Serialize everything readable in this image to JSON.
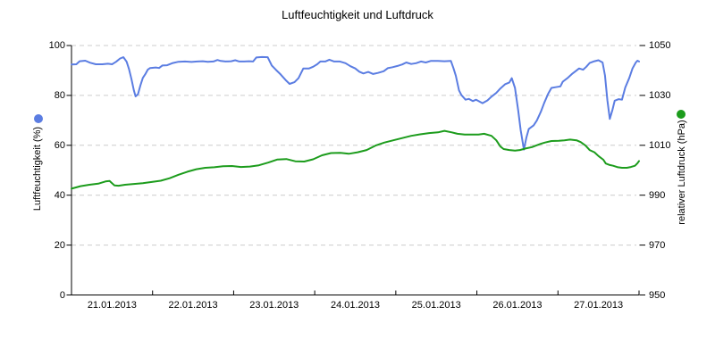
{
  "page": {
    "background": "#ffffff"
  },
  "chart_data": {
    "type": "line",
    "title": "Luftfeuchtigkeit und Luftdruck",
    "grid": "horizontal-dashed",
    "grid_color": "#cccccc",
    "axis_color": "#000000",
    "legend_position": "rotated-axis-titles-with-dots",
    "x_axis": {
      "tick_labels": [
        "21.01.2013",
        "22.01.2013",
        "23.01.2013",
        "24.01.2013",
        "25.01.2013",
        "26.01.2013",
        "27.01.2013"
      ],
      "range_days": [
        0,
        7
      ]
    },
    "y_axis_left": {
      "label": "Luftfeuchtigkeit (%)",
      "ticks": [
        0,
        20,
        40,
        60,
        80,
        100
      ],
      "range": [
        0,
        100
      ]
    },
    "y_axis_right": {
      "label": "relativer Luftdruck (hPa)",
      "ticks": [
        950,
        970,
        990,
        1010,
        1030,
        1050
      ],
      "range": [
        950,
        1050
      ]
    },
    "series": [
      {
        "name": "Luftfeuchtigkeit",
        "axis": "left",
        "unit": "%",
        "color": "#5b7de2",
        "data": [
          [
            0.0,
            92.4
          ],
          [
            0.06,
            92.5
          ],
          [
            0.1,
            93.7
          ],
          [
            0.17,
            93.9
          ],
          [
            0.23,
            93.1
          ],
          [
            0.3,
            92.5
          ],
          [
            0.38,
            92.5
          ],
          [
            0.45,
            92.7
          ],
          [
            0.5,
            92.5
          ],
          [
            0.55,
            93.5
          ],
          [
            0.6,
            94.8
          ],
          [
            0.64,
            95.3
          ],
          [
            0.68,
            93.5
          ],
          [
            0.71,
            90.5
          ],
          [
            0.74,
            86.5
          ],
          [
            0.77,
            82.0
          ],
          [
            0.79,
            79.6
          ],
          [
            0.82,
            80.5
          ],
          [
            0.85,
            84.0
          ],
          [
            0.88,
            87.0
          ],
          [
            0.91,
            88.5
          ],
          [
            0.94,
            90.3
          ],
          [
            0.97,
            91.0
          ],
          [
            1.04,
            91.2
          ],
          [
            1.08,
            91.0
          ],
          [
            1.12,
            92.0
          ],
          [
            1.18,
            92.1
          ],
          [
            1.25,
            93.0
          ],
          [
            1.32,
            93.5
          ],
          [
            1.4,
            93.6
          ],
          [
            1.48,
            93.4
          ],
          [
            1.55,
            93.6
          ],
          [
            1.62,
            93.7
          ],
          [
            1.68,
            93.5
          ],
          [
            1.75,
            93.6
          ],
          [
            1.8,
            94.2
          ],
          [
            1.84,
            93.8
          ],
          [
            1.9,
            93.6
          ],
          [
            1.97,
            93.7
          ],
          [
            2.02,
            94.1
          ],
          [
            2.07,
            93.6
          ],
          [
            2.13,
            93.6
          ],
          [
            2.19,
            93.7
          ],
          [
            2.24,
            93.6
          ],
          [
            2.28,
            95.2
          ],
          [
            2.35,
            95.4
          ],
          [
            2.42,
            95.3
          ],
          [
            2.47,
            92.0
          ],
          [
            2.52,
            90.3
          ],
          [
            2.58,
            88.4
          ],
          [
            2.64,
            86.2
          ],
          [
            2.69,
            84.6
          ],
          [
            2.75,
            85.3
          ],
          [
            2.8,
            86.9
          ],
          [
            2.86,
            90.8
          ],
          [
            2.93,
            90.8
          ],
          [
            2.98,
            91.5
          ],
          [
            3.03,
            92.5
          ],
          [
            3.07,
            93.6
          ],
          [
            3.13,
            93.6
          ],
          [
            3.18,
            94.3
          ],
          [
            3.24,
            93.6
          ],
          [
            3.31,
            93.6
          ],
          [
            3.38,
            92.9
          ],
          [
            3.44,
            91.7
          ],
          [
            3.5,
            90.8
          ],
          [
            3.55,
            89.5
          ],
          [
            3.6,
            88.8
          ],
          [
            3.66,
            89.4
          ],
          [
            3.72,
            88.6
          ],
          [
            3.78,
            89.0
          ],
          [
            3.85,
            89.7
          ],
          [
            3.9,
            90.9
          ],
          [
            3.96,
            91.3
          ],
          [
            4.02,
            91.8
          ],
          [
            4.08,
            92.4
          ],
          [
            4.13,
            93.2
          ],
          [
            4.19,
            92.6
          ],
          [
            4.25,
            92.9
          ],
          [
            4.31,
            93.6
          ],
          [
            4.37,
            93.2
          ],
          [
            4.43,
            93.8
          ],
          [
            4.52,
            93.8
          ],
          [
            4.6,
            93.7
          ],
          [
            4.68,
            93.8
          ],
          [
            4.71,
            91.0
          ],
          [
            4.74,
            87.9
          ],
          [
            4.78,
            82.0
          ],
          [
            4.81,
            80.1
          ],
          [
            4.86,
            78.3
          ],
          [
            4.9,
            78.6
          ],
          [
            4.95,
            77.7
          ],
          [
            4.99,
            78.3
          ],
          [
            5.07,
            76.9
          ],
          [
            5.13,
            78.0
          ],
          [
            5.18,
            79.5
          ],
          [
            5.24,
            81.0
          ],
          [
            5.29,
            82.8
          ],
          [
            5.35,
            84.5
          ],
          [
            5.4,
            85.2
          ],
          [
            5.43,
            86.9
          ],
          [
            5.47,
            83.0
          ],
          [
            5.51,
            74.0
          ],
          [
            5.54,
            66.0
          ],
          [
            5.58,
            58.3
          ],
          [
            5.61,
            63.0
          ],
          [
            5.64,
            66.5
          ],
          [
            5.7,
            68.0
          ],
          [
            5.74,
            70.0
          ],
          [
            5.79,
            73.5
          ],
          [
            5.83,
            77.0
          ],
          [
            5.88,
            80.7
          ],
          [
            5.92,
            83.0
          ],
          [
            5.97,
            83.3
          ],
          [
            6.03,
            83.6
          ],
          [
            6.06,
            85.5
          ],
          [
            6.12,
            87.0
          ],
          [
            6.17,
            88.5
          ],
          [
            6.23,
            90.0
          ],
          [
            6.26,
            90.8
          ],
          [
            6.31,
            90.3
          ],
          [
            6.35,
            91.5
          ],
          [
            6.39,
            93.0
          ],
          [
            6.45,
            93.7
          ],
          [
            6.5,
            94.1
          ],
          [
            6.55,
            93.2
          ],
          [
            6.58,
            88.0
          ],
          [
            6.61,
            78.0
          ],
          [
            6.64,
            70.6
          ],
          [
            6.67,
            74.0
          ],
          [
            6.7,
            77.9
          ],
          [
            6.75,
            78.5
          ],
          [
            6.79,
            78.3
          ],
          [
            6.83,
            83.2
          ],
          [
            6.88,
            87.0
          ],
          [
            6.92,
            90.8
          ],
          [
            6.96,
            93.2
          ],
          [
            6.98,
            93.9
          ],
          [
            7.0,
            93.6
          ]
        ]
      },
      {
        "name": "relativer Luftdruck",
        "axis": "right",
        "unit": "hPa",
        "color": "#1c9c1c",
        "data": [
          [
            0.0,
            992.6
          ],
          [
            0.11,
            993.6
          ],
          [
            0.22,
            994.2
          ],
          [
            0.33,
            994.6
          ],
          [
            0.42,
            995.5
          ],
          [
            0.47,
            995.7
          ],
          [
            0.53,
            993.9
          ],
          [
            0.58,
            993.8
          ],
          [
            0.66,
            994.2
          ],
          [
            0.77,
            994.5
          ],
          [
            0.88,
            994.8
          ],
          [
            0.99,
            995.3
          ],
          [
            1.1,
            995.8
          ],
          [
            1.21,
            996.8
          ],
          [
            1.32,
            998.2
          ],
          [
            1.43,
            999.4
          ],
          [
            1.54,
            1000.4
          ],
          [
            1.65,
            1001.0
          ],
          [
            1.76,
            1001.2
          ],
          [
            1.87,
            1001.6
          ],
          [
            1.98,
            1001.7
          ],
          [
            2.09,
            1001.3
          ],
          [
            2.2,
            1001.5
          ],
          [
            2.31,
            1002.0
          ],
          [
            2.43,
            1003.1
          ],
          [
            2.54,
            1004.3
          ],
          [
            2.65,
            1004.5
          ],
          [
            2.76,
            1003.6
          ],
          [
            2.87,
            1003.5
          ],
          [
            2.98,
            1004.4
          ],
          [
            3.09,
            1006.0
          ],
          [
            3.2,
            1006.9
          ],
          [
            3.31,
            1007.0
          ],
          [
            3.42,
            1006.6
          ],
          [
            3.53,
            1007.2
          ],
          [
            3.64,
            1008.1
          ],
          [
            3.75,
            1009.9
          ],
          [
            3.86,
            1011.1
          ],
          [
            3.97,
            1012.0
          ],
          [
            4.08,
            1012.9
          ],
          [
            4.19,
            1013.8
          ],
          [
            4.3,
            1014.4
          ],
          [
            4.41,
            1014.9
          ],
          [
            4.52,
            1015.2
          ],
          [
            4.6,
            1015.8
          ],
          [
            4.69,
            1015.2
          ],
          [
            4.76,
            1014.6
          ],
          [
            4.85,
            1014.3
          ],
          [
            4.96,
            1014.3
          ],
          [
            5.02,
            1014.3
          ],
          [
            5.09,
            1014.6
          ],
          [
            5.18,
            1013.8
          ],
          [
            5.24,
            1012.0
          ],
          [
            5.29,
            1009.5
          ],
          [
            5.33,
            1008.5
          ],
          [
            5.4,
            1008.1
          ],
          [
            5.47,
            1007.9
          ],
          [
            5.53,
            1008.1
          ],
          [
            5.6,
            1008.7
          ],
          [
            5.68,
            1009.3
          ],
          [
            5.73,
            1009.9
          ],
          [
            5.79,
            1010.6
          ],
          [
            5.84,
            1011.1
          ],
          [
            5.92,
            1011.7
          ],
          [
            6.01,
            1011.8
          ],
          [
            6.08,
            1012.0
          ],
          [
            6.15,
            1012.3
          ],
          [
            6.23,
            1012.0
          ],
          [
            6.28,
            1011.3
          ],
          [
            6.34,
            1009.9
          ],
          [
            6.39,
            1008.1
          ],
          [
            6.45,
            1007.2
          ],
          [
            6.5,
            1005.7
          ],
          [
            6.56,
            1004.2
          ],
          [
            6.59,
            1002.7
          ],
          [
            6.64,
            1002.1
          ],
          [
            6.68,
            1001.8
          ],
          [
            6.74,
            1001.2
          ],
          [
            6.79,
            1001.0
          ],
          [
            6.85,
            1001.0
          ],
          [
            6.9,
            1001.3
          ],
          [
            6.95,
            1001.8
          ],
          [
            6.98,
            1002.8
          ],
          [
            7.0,
            1003.7
          ]
        ]
      }
    ]
  }
}
